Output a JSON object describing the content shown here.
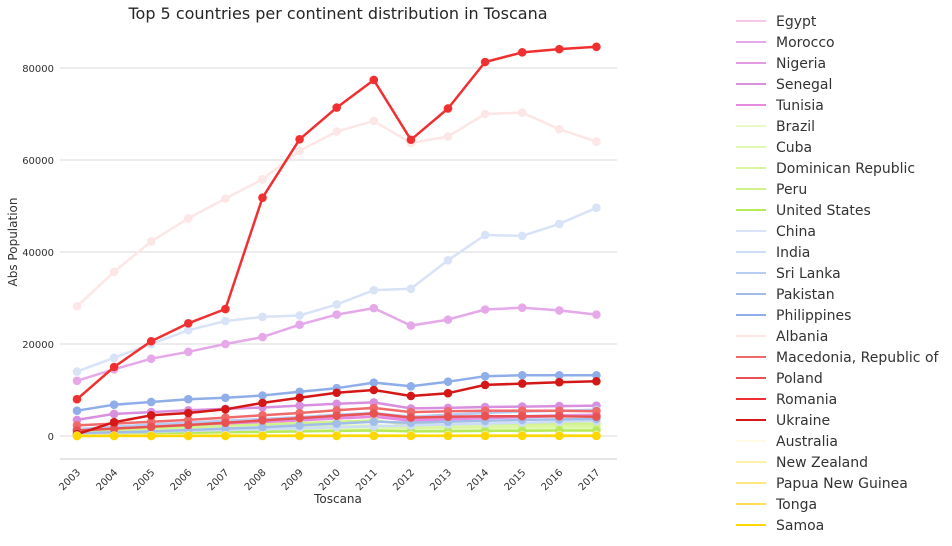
{
  "chart_data": {
    "type": "line",
    "title": "Top 5 countries per continent distribution in Toscana",
    "xlabel": "Toscana",
    "ylabel": "Abs Population",
    "x": [
      "2003",
      "2004",
      "2005",
      "2006",
      "2007",
      "2008",
      "2009",
      "2010",
      "2011",
      "2012",
      "2013",
      "2014",
      "2015",
      "2016",
      "2017"
    ],
    "ylim": [
      -5000,
      90000
    ],
    "yticks": [
      0,
      20000,
      40000,
      60000,
      80000
    ],
    "grid": true,
    "legend_position": "right",
    "series": [
      {
        "name": "Egypt",
        "color": "#f7c6ee",
        "values": [
          700,
          800,
          900,
          1000,
          1100,
          1200,
          1300,
          1400,
          1500,
          1200,
          1300,
          1400,
          1450,
          1500,
          1500
        ]
      },
      {
        "name": "Morocco",
        "color": "#e5a8e9",
        "values": [
          12000,
          14500,
          16800,
          18300,
          20000,
          21500,
          24200,
          26400,
          27800,
          24000,
          25300,
          27500,
          27900,
          27300,
          26400
        ]
      },
      {
        "name": "Nigeria",
        "color": "#e39be6",
        "values": [
          1300,
          1700,
          2100,
          2500,
          2900,
          3300,
          3800,
          4300,
          4800,
          3500,
          3800,
          4100,
          4300,
          4500,
          4600
        ]
      },
      {
        "name": "Senegal",
        "color": "#d98fdf",
        "values": [
          3500,
          4800,
          5200,
          5600,
          5900,
          6200,
          6600,
          7000,
          7300,
          6000,
          6100,
          6300,
          6400,
          6500,
          6600
        ]
      },
      {
        "name": "Tunisia",
        "color": "#e58ae0",
        "values": [
          1000,
          1400,
          1800,
          2200,
          2600,
          3000,
          3400,
          3800,
          4200,
          3300,
          3600,
          3900,
          4100,
          4300,
          4400
        ]
      },
      {
        "name": "Brazil",
        "color": "#e8fac9",
        "values": [
          800,
          1000,
          1200,
          1400,
          1600,
          1800,
          2000,
          2200,
          2400,
          2000,
          2100,
          2200,
          2300,
          2300,
          2300
        ]
      },
      {
        "name": "Cuba",
        "color": "#e2f8b5",
        "values": [
          500,
          650,
          800,
          950,
          1100,
          1250,
          1400,
          1550,
          1700,
          1400,
          1500,
          1600,
          1650,
          1700,
          1700
        ]
      },
      {
        "name": "Dominican Republic",
        "color": "#d9f5a0",
        "values": [
          600,
          800,
          1000,
          1200,
          1400,
          1600,
          1800,
          2000,
          2200,
          1800,
          1900,
          2000,
          2100,
          2100,
          2100
        ]
      },
      {
        "name": "Peru",
        "color": "#d0f28a",
        "values": [
          1000,
          1300,
          1600,
          1900,
          2200,
          2500,
          2800,
          3100,
          3400,
          2400,
          2500,
          2600,
          2700,
          2700,
          2700
        ]
      },
      {
        "name": "United States",
        "color": "#b6ea5a",
        "values": [
          400,
          500,
          600,
          700,
          800,
          900,
          1000,
          1100,
          1200,
          1000,
          1050,
          1100,
          1150,
          1200,
          1200
        ]
      },
      {
        "name": "China",
        "color": "#d8e3f7",
        "values": [
          14000,
          17000,
          20000,
          23000,
          25000,
          25900,
          26200,
          28600,
          31700,
          32000,
          38200,
          43700,
          43500,
          46100,
          49600
        ]
      },
      {
        "name": "India",
        "color": "#cdddf7",
        "values": [
          500,
          700,
          900,
          1100,
          1300,
          1500,
          1700,
          1900,
          2100,
          2300,
          2500,
          2700,
          2900,
          3100,
          3300
        ]
      },
      {
        "name": "Sri Lanka",
        "color": "#b7ccf4",
        "values": [
          1500,
          2000,
          2500,
          2900,
          3300,
          3700,
          4100,
          4600,
          5000,
          4200,
          4600,
          5000,
          5300,
          5500,
          5700
        ]
      },
      {
        "name": "Pakistan",
        "color": "#a3bde9",
        "values": [
          600,
          800,
          1000,
          1300,
          1600,
          1900,
          2300,
          2700,
          3100,
          2900,
          3100,
          3300,
          3500,
          3600,
          3700
        ]
      },
      {
        "name": "Philippines",
        "color": "#8faee9",
        "values": [
          5500,
          6800,
          7400,
          8000,
          8300,
          8800,
          9600,
          10400,
          11600,
          10800,
          11800,
          13000,
          13200,
          13200,
          13200
        ]
      },
      {
        "name": "Albania",
        "color": "#fde6e6",
        "values": [
          28200,
          35700,
          42300,
          47300,
          51600,
          55800,
          62000,
          66200,
          68500,
          63700,
          65100,
          70000,
          70300,
          66700,
          64000
        ]
      },
      {
        "name": "Macedonia, Republic of",
        "color": "#f06a6a",
        "values": [
          2300,
          2700,
          3100,
          3500,
          4000,
          4500,
          5000,
          5600,
          6100,
          5200,
          5400,
          5500,
          5500,
          5500,
          5400
        ]
      },
      {
        "name": "Poland",
        "color": "#e85252",
        "values": [
          1200,
          1600,
          2000,
          2400,
          2900,
          3400,
          3900,
          4400,
          4900,
          4000,
          4200,
          4300,
          4300,
          4300,
          4200
        ]
      },
      {
        "name": "Romania",
        "color": "#f03030",
        "values": [
          8000,
          15000,
          20600,
          24500,
          27600,
          51800,
          64500,
          71400,
          77400,
          64400,
          71200,
          81300,
          83400,
          84100,
          84600
        ]
      },
      {
        "name": "Ukraine",
        "color": "#d41818",
        "values": [
          400,
          3000,
          4500,
          5000,
          5800,
          7200,
          8300,
          9400,
          10000,
          8700,
          9300,
          11100,
          11400,
          11700,
          11900
        ]
      },
      {
        "name": "Australia",
        "color": "#fffbe6",
        "values": [
          100,
          110,
          120,
          130,
          140,
          150,
          160,
          170,
          180,
          170,
          175,
          180,
          185,
          190,
          195
        ]
      },
      {
        "name": "New Zealand",
        "color": "#fff0a8",
        "values": [
          60,
          70,
          80,
          90,
          100,
          110,
          120,
          130,
          140,
          130,
          135,
          140,
          145,
          150,
          150
        ]
      },
      {
        "name": "Papua New Guinea",
        "color": "#ffe680",
        "values": [
          30,
          35,
          40,
          45,
          50,
          55,
          60,
          65,
          70,
          65,
          68,
          70,
          72,
          74,
          75
        ]
      },
      {
        "name": "Tonga",
        "color": "#ffdd55",
        "values": [
          20,
          22,
          24,
          26,
          28,
          30,
          32,
          34,
          36,
          33,
          34,
          35,
          36,
          37,
          38
        ]
      },
      {
        "name": "Samoa",
        "color": "#ffd700",
        "values": [
          10,
          12,
          14,
          16,
          18,
          20,
          22,
          24,
          26,
          23,
          24,
          25,
          26,
          27,
          28
        ]
      }
    ]
  }
}
